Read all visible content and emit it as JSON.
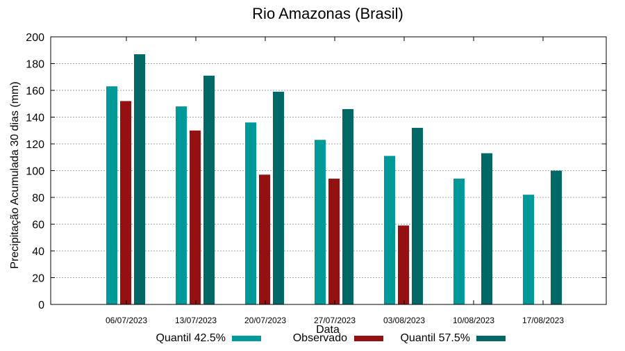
{
  "chart_data": {
    "type": "bar",
    "title": "Rio Amazonas (Brasil)",
    "xlabel": "Data",
    "ylabel": "Precipitação Acumulada 30 dias (mm)",
    "ylim": [
      0,
      200
    ],
    "yticks": [
      0,
      20,
      40,
      60,
      80,
      100,
      120,
      140,
      160,
      180,
      200
    ],
    "grid": true,
    "legend_position": "bottom",
    "categories": [
      "06/07/2023",
      "13/07/2023",
      "20/07/2023",
      "27/07/2023",
      "03/08/2023",
      "10/08/2023",
      "17/08/2023"
    ],
    "series": [
      {
        "name": "Quantil 42.5%",
        "color": "#00999a",
        "values": [
          163,
          148,
          136,
          123,
          111,
          94,
          82
        ]
      },
      {
        "name": "Observado",
        "color": "#941111",
        "values": [
          152,
          130,
          97,
          94,
          59,
          null,
          null
        ]
      },
      {
        "name": "Quantil 57.5%",
        "color": "#006966",
        "values": [
          187,
          171,
          159,
          146,
          132,
          113,
          100
        ]
      }
    ]
  }
}
